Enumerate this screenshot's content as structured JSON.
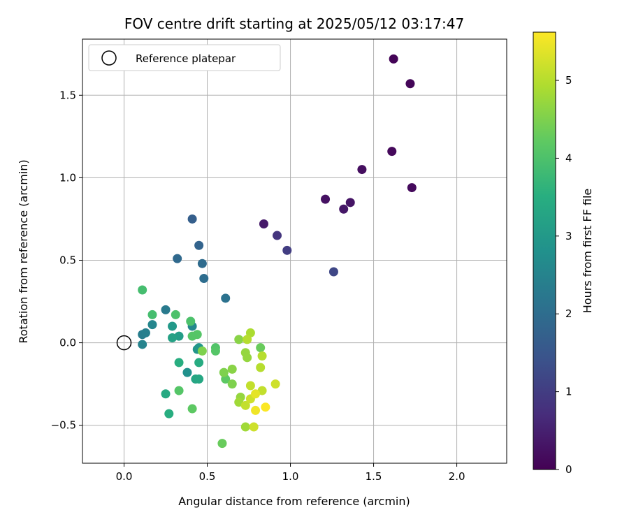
{
  "chart_data": {
    "type": "scatter",
    "title": "FOV centre drift starting at 2025/05/12 03:17:47",
    "xlabel": "Angular distance from reference (arcmin)",
    "ylabel": "Rotation from reference (arcmin)",
    "xlim": [
      -0.25,
      2.3
    ],
    "ylim": [
      -0.73,
      1.84
    ],
    "x_ticks": [
      0.0,
      0.5,
      1.0,
      1.5,
      2.0
    ],
    "x_tick_labels": [
      "0.0",
      "0.5",
      "1.0",
      "1.5",
      "2.0"
    ],
    "y_ticks": [
      -0.5,
      0.0,
      0.5,
      1.0,
      1.5
    ],
    "y_tick_labels": [
      "−0.5",
      "0.0",
      "0.5",
      "1.0",
      "1.5"
    ],
    "grid": true,
    "legend": {
      "placement": "top-left",
      "label": "Reference platepar"
    },
    "reference_point": {
      "x": 0.0,
      "y": 0.0
    },
    "colorbar": {
      "label": "Hours from first FF file",
      "colormap": "viridis",
      "range": [
        0,
        5.62
      ],
      "ticks": [
        0,
        1,
        2,
        3,
        4,
        5
      ],
      "tick_labels": [
        "0",
        "1",
        "2",
        "3",
        "4",
        "5"
      ]
    },
    "points": [
      {
        "x": 1.62,
        "y": 1.72,
        "c": 0.05
      },
      {
        "x": 1.72,
        "y": 1.57,
        "c": 0.08
      },
      {
        "x": 1.61,
        "y": 1.16,
        "c": 0.12
      },
      {
        "x": 1.73,
        "y": 0.94,
        "c": 0.15
      },
      {
        "x": 1.43,
        "y": 1.05,
        "c": 0.2
      },
      {
        "x": 1.21,
        "y": 0.87,
        "c": 0.25
      },
      {
        "x": 1.36,
        "y": 0.85,
        "c": 0.3
      },
      {
        "x": 1.32,
        "y": 0.81,
        "c": 0.35
      },
      {
        "x": 0.84,
        "y": 0.72,
        "c": 0.4
      },
      {
        "x": 0.92,
        "y": 0.65,
        "c": 0.85
      },
      {
        "x": 0.98,
        "y": 0.56,
        "c": 1.0
      },
      {
        "x": 1.26,
        "y": 0.43,
        "c": 1.2
      },
      {
        "x": 0.41,
        "y": 0.75,
        "c": 1.7
      },
      {
        "x": 0.45,
        "y": 0.59,
        "c": 1.8
      },
      {
        "x": 0.32,
        "y": 0.51,
        "c": 1.9
      },
      {
        "x": 0.47,
        "y": 0.48,
        "c": 1.95
      },
      {
        "x": 0.48,
        "y": 0.39,
        "c": 2.0
      },
      {
        "x": 0.61,
        "y": 0.27,
        "c": 2.1
      },
      {
        "x": 0.25,
        "y": 0.2,
        "c": 2.3
      },
      {
        "x": 0.11,
        "y": 0.05,
        "c": 2.35
      },
      {
        "x": 0.13,
        "y": 0.06,
        "c": 2.4
      },
      {
        "x": 0.11,
        "y": -0.01,
        "c": 2.5
      },
      {
        "x": 0.17,
        "y": 0.11,
        "c": 2.55
      },
      {
        "x": 0.41,
        "y": 0.1,
        "c": 2.6
      },
      {
        "x": 0.38,
        "y": -0.18,
        "c": 2.8
      },
      {
        "x": 0.44,
        "y": -0.04,
        "c": 2.9
      },
      {
        "x": 0.45,
        "y": -0.03,
        "c": 2.95
      },
      {
        "x": 0.29,
        "y": 0.1,
        "c": 3.0
      },
      {
        "x": 0.33,
        "y": 0.04,
        "c": 3.1
      },
      {
        "x": 0.29,
        "y": 0.03,
        "c": 3.2
      },
      {
        "x": 0.25,
        "y": -0.31,
        "c": 3.4
      },
      {
        "x": 0.27,
        "y": -0.43,
        "c": 3.5
      },
      {
        "x": 0.33,
        "y": -0.12,
        "c": 3.5
      },
      {
        "x": 0.43,
        "y": -0.22,
        "c": 3.3
      },
      {
        "x": 0.45,
        "y": -0.22,
        "c": 3.35
      },
      {
        "x": 0.45,
        "y": -0.12,
        "c": 3.45
      },
      {
        "x": 0.11,
        "y": 0.32,
        "c": 3.9
      },
      {
        "x": 0.17,
        "y": 0.17,
        "c": 3.9
      },
      {
        "x": 0.31,
        "y": 0.17,
        "c": 4.0
      },
      {
        "x": 0.4,
        "y": 0.13,
        "c": 4.0
      },
      {
        "x": 0.41,
        "y": 0.04,
        "c": 4.1
      },
      {
        "x": 0.44,
        "y": 0.05,
        "c": 4.1
      },
      {
        "x": 0.33,
        "y": -0.29,
        "c": 4.1
      },
      {
        "x": 0.41,
        "y": -0.4,
        "c": 4.2
      },
      {
        "x": 0.55,
        "y": -0.03,
        "c": 4.05
      },
      {
        "x": 0.55,
        "y": -0.05,
        "c": 4.1
      },
      {
        "x": 0.61,
        "y": -0.22,
        "c": 4.2
      },
      {
        "x": 0.59,
        "y": -0.61,
        "c": 4.3
      },
      {
        "x": 0.47,
        "y": -0.05,
        "c": 4.5
      },
      {
        "x": 0.6,
        "y": -0.18,
        "c": 4.5
      },
      {
        "x": 0.65,
        "y": -0.16,
        "c": 4.6
      },
      {
        "x": 0.65,
        "y": -0.25,
        "c": 4.5
      },
      {
        "x": 0.69,
        "y": 0.02,
        "c": 4.6
      },
      {
        "x": 0.73,
        "y": -0.06,
        "c": 4.7
      },
      {
        "x": 0.74,
        "y": -0.09,
        "c": 4.7
      },
      {
        "x": 0.7,
        "y": -0.33,
        "c": 4.7
      },
      {
        "x": 0.69,
        "y": -0.36,
        "c": 4.8
      },
      {
        "x": 0.73,
        "y": -0.51,
        "c": 4.8
      },
      {
        "x": 0.82,
        "y": -0.03,
        "c": 4.3
      },
      {
        "x": 0.76,
        "y": 0.06,
        "c": 4.9
      },
      {
        "x": 0.74,
        "y": 0.02,
        "c": 5.0
      },
      {
        "x": 0.83,
        "y": -0.08,
        "c": 5.0
      },
      {
        "x": 0.82,
        "y": -0.15,
        "c": 5.0
      },
      {
        "x": 0.76,
        "y": -0.26,
        "c": 5.1
      },
      {
        "x": 0.83,
        "y": -0.29,
        "c": 5.1
      },
      {
        "x": 0.73,
        "y": -0.38,
        "c": 5.1
      },
      {
        "x": 0.76,
        "y": -0.34,
        "c": 5.2
      },
      {
        "x": 0.78,
        "y": -0.51,
        "c": 5.2
      },
      {
        "x": 0.91,
        "y": -0.25,
        "c": 5.2
      },
      {
        "x": 0.79,
        "y": -0.31,
        "c": 5.4
      },
      {
        "x": 0.79,
        "y": -0.41,
        "c": 5.5
      },
      {
        "x": 0.85,
        "y": -0.39,
        "c": 5.6
      }
    ]
  }
}
